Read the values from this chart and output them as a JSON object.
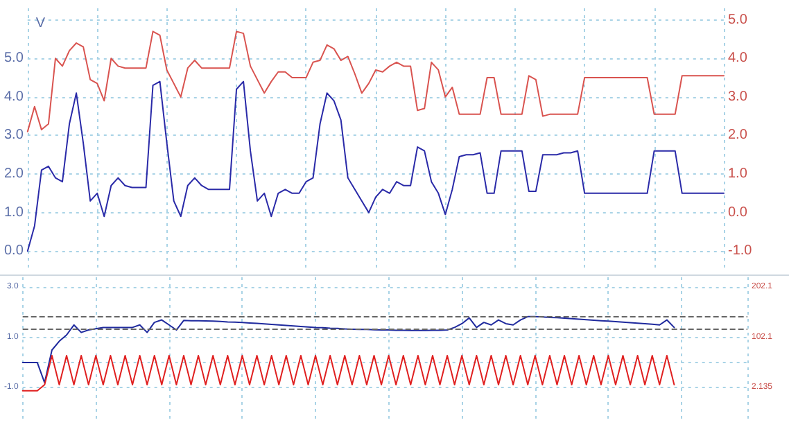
{
  "chart_data": [
    {
      "type": "line",
      "ylabel": "V",
      "tick_labels": "y",
      "grid": true,
      "line_style": "solid",
      "categories": [
        null,
        null,
        null,
        null,
        null,
        null,
        null,
        null,
        null,
        null,
        null,
        null,
        null,
        null,
        null,
        null,
        null,
        null,
        null,
        null,
        null,
        null,
        null,
        null,
        null,
        null,
        null,
        null,
        null,
        null,
        null,
        null,
        null,
        null,
        null,
        null,
        null,
        null,
        null,
        null,
        null,
        null,
        null,
        null,
        null,
        null,
        null,
        null,
        null,
        null,
        null,
        null,
        null,
        null,
        null,
        null,
        null,
        null,
        null,
        null,
        null,
        null,
        null,
        null,
        null,
        null,
        null,
        null,
        null,
        null,
        null,
        null,
        null,
        null,
        null,
        null,
        null,
        null,
        null,
        null,
        null,
        null,
        null,
        null,
        null,
        null,
        null,
        null,
        null,
        null,
        null,
        null,
        null,
        null,
        null,
        null,
        null,
        null,
        null,
        null,
        null
      ],
      "ylim": [
        -0.5,
        6.3
      ],
      "yticks": [
        {
          "value": 0,
          "label": "0.0"
        },
        {
          "value": 1,
          "label": "1.0"
        },
        {
          "value": 2,
          "label": "2.0"
        },
        {
          "value": 3,
          "label": "3.0"
        },
        {
          "value": 4,
          "label": "4.0"
        },
        {
          "value": 5,
          "label": "5.0"
        },
        {
          "value": 6,
          "label": null
        }
      ],
      "y2lim": [
        -1.5,
        5.3
      ],
      "y2ticks": [
        {
          "value": -1,
          "label": "-1.0"
        },
        {
          "value": 0,
          "label": "0.0"
        },
        {
          "value": 1,
          "label": "1.0"
        },
        {
          "value": 2,
          "label": "2.0"
        },
        {
          "value": 3,
          "label": "3.0"
        },
        {
          "value": 4,
          "label": "4.0"
        },
        {
          "value": 5,
          "label": "5.0"
        }
      ],
      "series": [
        {
          "color": "#2a2aa8",
          "values": [
            0.0,
            0.65,
            2.1,
            2.2,
            1.9,
            1.8,
            3.3,
            4.1,
            2.8,
            1.3,
            1.5,
            0.9,
            1.7,
            1.9,
            1.7,
            1.65,
            1.65,
            1.65,
            4.3,
            4.4,
            2.8,
            1.3,
            0.9,
            1.7,
            1.9,
            1.7,
            1.6,
            1.6,
            1.6,
            1.6,
            4.2,
            4.4,
            2.6,
            1.3,
            1.5,
            0.9,
            1.5,
            1.6,
            1.5,
            1.5,
            1.8,
            1.9,
            3.3,
            4.1,
            3.9,
            3.4,
            1.9,
            1.6,
            1.3,
            1.0,
            1.4,
            1.6,
            1.5,
            1.8,
            1.7,
            1.7,
            2.7,
            2.6,
            1.8,
            1.5,
            0.95,
            1.6,
            2.45,
            2.5,
            2.5,
            2.55,
            1.5,
            1.5,
            2.6,
            2.6,
            2.6,
            2.6,
            1.55,
            1.55,
            2.5,
            2.5,
            2.5,
            2.55,
            2.55,
            2.6,
            1.5,
            1.5,
            1.5,
            1.5,
            1.5,
            1.5,
            1.5,
            1.5,
            1.5,
            1.5,
            2.6,
            2.6,
            2.6,
            2.6,
            1.5,
            1.5,
            1.5,
            1.5,
            1.5,
            1.5,
            1.5
          ]
        },
        {
          "color": "#d9534f",
          "axis": "y2",
          "values": [
            2.1,
            2.75,
            2.15,
            2.3,
            4.0,
            3.8,
            4.2,
            4.4,
            4.3,
            3.45,
            3.35,
            2.9,
            4.0,
            3.8,
            3.75,
            3.75,
            3.75,
            3.75,
            4.7,
            4.6,
            3.7,
            3.35,
            3.0,
            3.75,
            3.95,
            3.75,
            3.75,
            3.75,
            3.75,
            3.75,
            4.7,
            4.65,
            3.8,
            3.45,
            3.1,
            3.4,
            3.65,
            3.65,
            3.5,
            3.5,
            3.5,
            3.9,
            3.95,
            4.35,
            4.25,
            3.95,
            4.05,
            3.6,
            3.1,
            3.35,
            3.7,
            3.65,
            3.8,
            3.9,
            3.8,
            3.8,
            2.65,
            2.7,
            3.9,
            3.7,
            3.0,
            3.25,
            2.55,
            2.55,
            2.55,
            2.55,
            3.5,
            3.5,
            2.55,
            2.55,
            2.55,
            2.55,
            3.55,
            3.45,
            2.5,
            2.55,
            2.55,
            2.55,
            2.55,
            2.55,
            3.5,
            3.5,
            3.5,
            3.5,
            3.5,
            3.5,
            3.5,
            3.5,
            3.5,
            3.5,
            2.55,
            2.55,
            2.55,
            2.55,
            3.55,
            3.55,
            3.55,
            3.55,
            3.55,
            3.55,
            3.55
          ]
        }
      ]
    },
    {
      "type": "line",
      "tick_labels": "y",
      "grid": true,
      "line_style": "solid",
      "categories": [
        null,
        null,
        null,
        null,
        null,
        null,
        null,
        null,
        null,
        null,
        null,
        null,
        null,
        null,
        null,
        null,
        null,
        null,
        null,
        null,
        null,
        null,
        null,
        null,
        null,
        null,
        null,
        null,
        null,
        null,
        null,
        null,
        null,
        null,
        null,
        null,
        null,
        null,
        null,
        null,
        null,
        null,
        null,
        null,
        null,
        null,
        null,
        null,
        null,
        null,
        null,
        null,
        null,
        null,
        null,
        null,
        null,
        null,
        null,
        null,
        null,
        null,
        null,
        null,
        null,
        null,
        null,
        null,
        null,
        null,
        null,
        null,
        null,
        null,
        null,
        null,
        null,
        null,
        null,
        null,
        null,
        null,
        null,
        null,
        null,
        null,
        null,
        null,
        null,
        null,
        null,
        null,
        null,
        null,
        null,
        null,
        null,
        null,
        null,
        null
      ],
      "ylim": [
        -2.4,
        3.4
      ],
      "yticks": [
        {
          "value": -1,
          "label": "-1.0"
        },
        {
          "value": 0,
          "label": null
        },
        {
          "value": 1,
          "label": "1.0"
        },
        {
          "value": 3,
          "label": "3.0"
        }
      ],
      "y2lim": [
        -68,
        222
      ],
      "y2ticks": [
        2.135,
        102.1,
        202.1
      ],
      "ref_lines": [
        {
          "axis": "y",
          "value": 1.83,
          "color": "#666666",
          "line_style": "dashed"
        },
        {
          "axis": "y",
          "value": 1.33,
          "color": "#666666",
          "line_style": "dashed"
        }
      ],
      "series": [
        {
          "color": "#1f2a9e",
          "values": [
            0.0,
            0.0,
            0.0,
            -0.8,
            0.5,
            0.85,
            1.1,
            1.5,
            1.2,
            1.3,
            1.35,
            1.4,
            1.4,
            1.4,
            1.4,
            1.4,
            1.5,
            1.2,
            1.6,
            1.7,
            1.5,
            1.3,
            1.68,
            1.67,
            1.67,
            1.66,
            1.65,
            1.64,
            1.62,
            1.61,
            1.6,
            1.58,
            1.56,
            1.54,
            1.52,
            1.5,
            1.48,
            1.46,
            1.44,
            1.42,
            1.4,
            1.39,
            1.37,
            1.36,
            1.34,
            1.33,
            1.32,
            1.32,
            1.31,
            1.3,
            1.3,
            1.29,
            1.29,
            1.28,
            1.28,
            1.28,
            1.29,
            1.29,
            1.3,
            1.4,
            1.55,
            1.78,
            1.4,
            1.6,
            1.5,
            1.7,
            1.55,
            1.5,
            1.7,
            1.83,
            1.83,
            1.82,
            1.8,
            1.79,
            1.77,
            1.75,
            1.73,
            1.71,
            1.69,
            1.67,
            1.65,
            1.63,
            1.61,
            1.59,
            1.57,
            1.55,
            1.53,
            1.5,
            1.7,
            1.4,
            null,
            null,
            null,
            null,
            null,
            null,
            null,
            null,
            null,
            null
          ]
        },
        {
          "color": "#e02020",
          "axis": "y2",
          "values": [
            -4,
            -4,
            -4,
            8,
            66,
            8,
            66,
            8,
            66,
            8,
            66,
            8,
            66,
            8,
            66,
            8,
            66,
            8,
            66,
            8,
            66,
            8,
            66,
            8,
            66,
            8,
            66,
            8,
            66,
            8,
            66,
            8,
            66,
            8,
            66,
            8,
            66,
            8,
            66,
            8,
            66,
            8,
            66,
            8,
            66,
            8,
            66,
            8,
            66,
            8,
            66,
            8,
            66,
            8,
            66,
            8,
            66,
            8,
            66,
            8,
            66,
            8,
            66,
            8,
            66,
            8,
            66,
            8,
            66,
            8,
            66,
            8,
            66,
            8,
            66,
            8,
            66,
            8,
            66,
            8,
            66,
            8,
            66,
            8,
            66,
            8,
            66,
            8,
            66,
            8,
            null,
            null,
            null,
            null,
            null,
            null,
            null,
            null,
            null,
            null
          ]
        }
      ]
    }
  ]
}
